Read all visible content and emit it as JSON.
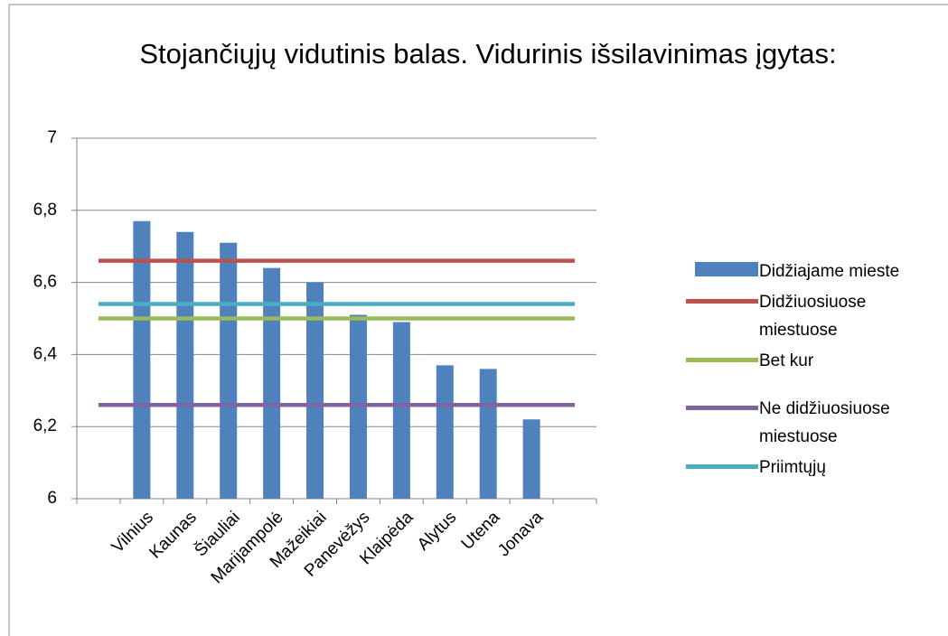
{
  "chart_data": {
    "type": "bar_line",
    "title": "Stojančiųjų vidutinis balas. Vidurinis išsilavinimas įgytas:",
    "categories": [
      null,
      "Vilnius",
      "Kaunas",
      "Šiauliai",
      "Marijampolė",
      "Mažeikiai",
      "Panevėžys",
      "Klaipėda",
      "Alytus",
      "Utena",
      "Jonava",
      null
    ],
    "series": [
      {
        "name": "Didžiajame mieste",
        "type": "bar",
        "color": "#4f81bd",
        "values": [
          null,
          6.77,
          6.74,
          6.71,
          6.64,
          6.6,
          6.51,
          6.49,
          6.37,
          6.36,
          6.22,
          null
        ]
      },
      {
        "name": "Didžiuosiuose miestuose",
        "type": "line",
        "color": "#c0504d",
        "values": [
          6.66,
          6.66,
          6.66,
          6.66,
          6.66,
          6.66,
          6.66,
          6.66,
          6.66,
          6.66,
          6.66,
          6.66
        ]
      },
      {
        "name": "Bet kur",
        "type": "line",
        "color": "#9bbb59",
        "values": [
          6.5,
          6.5,
          6.5,
          6.5,
          6.5,
          6.5,
          6.5,
          6.5,
          6.5,
          6.5,
          6.5,
          6.5
        ]
      },
      {
        "name": "Ne didžiuosiuose miestuose",
        "type": "line",
        "color": "#8064a2",
        "values": [
          6.26,
          6.26,
          6.26,
          6.26,
          6.26,
          6.26,
          6.26,
          6.26,
          6.26,
          6.26,
          6.26,
          6.26
        ]
      },
      {
        "name": "Priimtųjų",
        "type": "line",
        "color": "#4bacc6",
        "values": [
          6.54,
          6.54,
          6.54,
          6.54,
          6.54,
          6.54,
          6.54,
          6.54,
          6.54,
          6.54,
          6.54,
          6.54
        ]
      }
    ],
    "ylim": [
      6,
      7
    ],
    "yticks": [
      6,
      {
        "value": 6.2,
        "label": "6,2"
      },
      {
        "value": 6.4,
        "label": "6,4"
      },
      {
        "value": 6.6,
        "label": "6,6"
      },
      {
        "value": 6.8,
        "label": "6,8"
      },
      7
    ],
    "grid": true,
    "legend": "right"
  }
}
